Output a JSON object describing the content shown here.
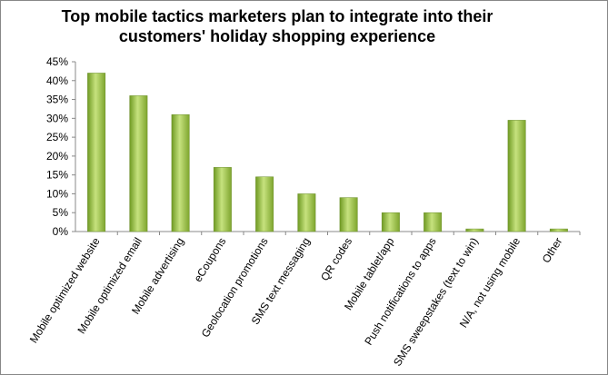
{
  "chart_data": {
    "type": "bar",
    "title": [
      "Top mobile tactics marketers plan to integrate into their",
      "customers' holiday shopping experience"
    ],
    "categories": [
      "Mobile optimized website",
      "Mobile optimized email",
      "Mobile advertising",
      "eCoupons",
      "Geolocation promotions",
      "SMS text messaging",
      "QR codes",
      "Mobile tablet/app",
      "Push notifications to apps",
      "SMS sweepstakes (text to win)",
      "N/A, not using mobile",
      "Other"
    ],
    "values": [
      42,
      36,
      31,
      17,
      14.5,
      10,
      9,
      5,
      5,
      0.7,
      29.5,
      0.7
    ],
    "color": "#8db53c",
    "ylim": [
      0,
      45
    ],
    "yticks": [
      {
        "value": 0,
        "label": "0%"
      },
      {
        "value": 5,
        "label": "5%"
      },
      {
        "value": 10,
        "label": "10%"
      },
      {
        "value": 15,
        "label": "15%"
      },
      {
        "value": 20,
        "label": "20%"
      },
      {
        "value": 25,
        "label": "25%"
      },
      {
        "value": 30,
        "label": "30%"
      },
      {
        "value": 35,
        "label": "35%"
      },
      {
        "value": 40,
        "label": "40%"
      },
      {
        "value": 45,
        "label": "45%"
      }
    ],
    "grid": false
  }
}
